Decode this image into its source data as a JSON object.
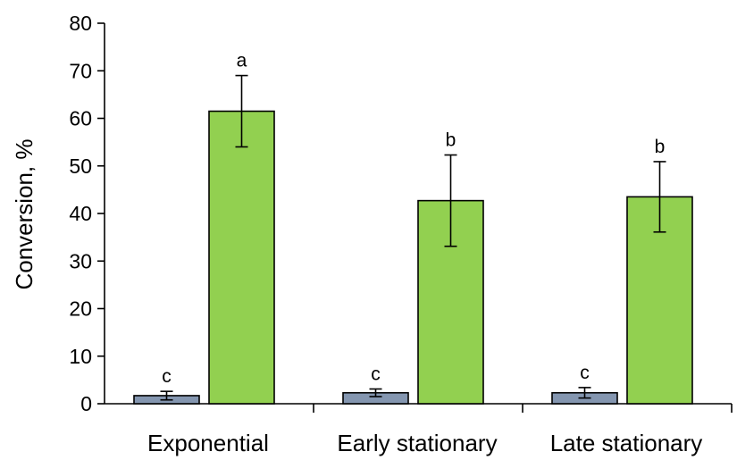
{
  "chart_data": {
    "type": "bar",
    "categories": [
      "Exponential",
      "Early stationary",
      "Late stationary"
    ],
    "ylabel": "Conversion, %",
    "xlabel": "",
    "ylim": [
      0,
      80
    ],
    "yticks": [
      0,
      10,
      20,
      30,
      40,
      50,
      60,
      70,
      80
    ],
    "grid": false,
    "legend": "none",
    "series": [
      {
        "color": "#8496b0",
        "values": [
          1.7,
          2.3,
          2.3
        ],
        "errors": [
          0.9,
          0.8,
          1.1
        ],
        "labels": [
          "c",
          "c",
          "c"
        ]
      },
      {
        "color": "#92d050",
        "values": [
          61.5,
          42.7,
          43.5
        ],
        "errors": [
          7.5,
          9.6,
          7.4
        ],
        "labels": [
          "a",
          "b",
          "b"
        ]
      }
    ]
  }
}
